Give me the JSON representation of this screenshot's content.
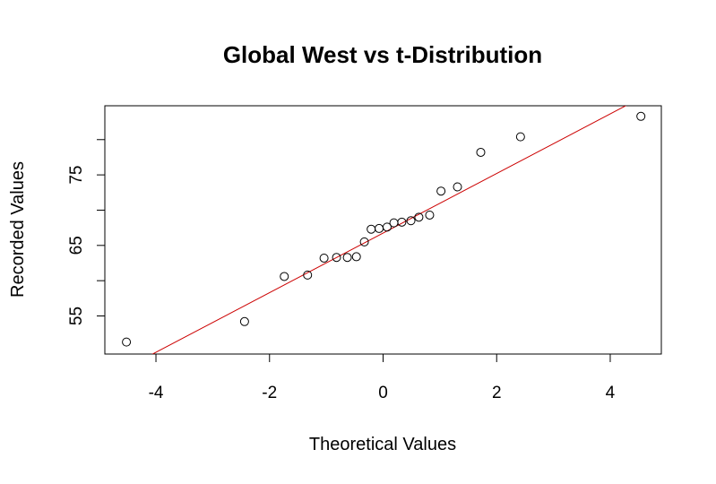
{
  "chart_data": {
    "type": "scatter",
    "title": "Global West vs t-Distribution",
    "xlabel": "Theoretical Values",
    "ylabel": "Recorded Values",
    "xlim": [
      -4.9,
      4.9
    ],
    "ylim": [
      49.6,
      84.8
    ],
    "xticks": [
      -4,
      -2,
      0,
      2,
      4
    ],
    "xtick_labels": [
      "-4",
      "-2",
      "0",
      "2",
      "4"
    ],
    "yticks": [
      55,
      60,
      65,
      70,
      75,
      80
    ],
    "ytick_labels": [
      "55",
      "",
      "65",
      "",
      "75",
      ""
    ],
    "grid": false,
    "points": [
      {
        "x": -4.52,
        "y": 51.3
      },
      {
        "x": -2.44,
        "y": 54.2
      },
      {
        "x": -1.74,
        "y": 60.6
      },
      {
        "x": -1.33,
        "y": 60.8
      },
      {
        "x": -1.04,
        "y": 63.2
      },
      {
        "x": -0.82,
        "y": 63.3
      },
      {
        "x": -0.63,
        "y": 63.3
      },
      {
        "x": -0.47,
        "y": 63.4
      },
      {
        "x": -0.33,
        "y": 65.5
      },
      {
        "x": -0.21,
        "y": 67.3
      },
      {
        "x": -0.07,
        "y": 67.4
      },
      {
        "x": 0.07,
        "y": 67.6
      },
      {
        "x": 0.19,
        "y": 68.2
      },
      {
        "x": 0.33,
        "y": 68.3
      },
      {
        "x": 0.49,
        "y": 68.5
      },
      {
        "x": 0.63,
        "y": 69.0
      },
      {
        "x": 0.82,
        "y": 69.3
      },
      {
        "x": 1.02,
        "y": 72.7
      },
      {
        "x": 1.31,
        "y": 73.3
      },
      {
        "x": 1.72,
        "y": 78.2
      },
      {
        "x": 2.42,
        "y": 80.4
      },
      {
        "x": 4.54,
        "y": 83.3
      }
    ],
    "reference_line": {
      "intercept": 66.75,
      "slope": 4.225,
      "color": "#cc0000"
    },
    "point_color": "#000000"
  }
}
